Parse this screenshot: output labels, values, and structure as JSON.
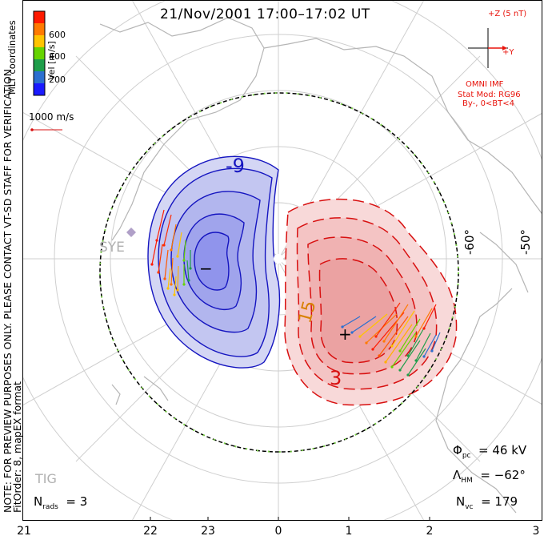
{
  "title": "21/Nov/2001 17:00–17:02 UT",
  "coords_label": "MLT coordinates",
  "colorbar": {
    "label": "Vel [m/s]",
    "ticks": [
      "600",
      "400",
      "200"
    ],
    "colors": [
      "#ff1a00",
      "#ff7a00",
      "#ffc400",
      "#66d400",
      "#1e9e4a",
      "#2b6fd0",
      "#1a1aff"
    ]
  },
  "scale_vector": "1000 m/s",
  "notice": "NOTE: FOR PREVIEW PURPOSES ONLY. PLEASE CONTACT VT-SD STAFF FOR VERIFICATION.",
  "fit_order": "FitOrder: 8, mapEX format",
  "imf": {
    "z_label": "+Z (5 nT)",
    "y_label": "+Y",
    "source": "OMNI IMF",
    "model": "Stat Mod: RG96",
    "cond": "By-, 0<BT<4"
  },
  "contour_labels": {
    "neg": "-9",
    "pos1": "15",
    "pos2": "3",
    "min_mark": "−",
    "max_mark": "+"
  },
  "lat_labels": [
    "-60°",
    "-50°"
  ],
  "stations": [
    "SYE",
    "TIG"
  ],
  "stats": {
    "phi_sym": "Φ",
    "phi_sub": "pc",
    "phi_val": "= 46 kV",
    "lam_sym": "Λ",
    "lam_sub": "HM",
    "lam_val": "= −62°",
    "nvc_sym": "N",
    "nvc_sub": "vc",
    "nvc_val": "= 179",
    "nrads_sym": "N",
    "nrads_sub": "rads",
    "nrads_val": "= 3"
  },
  "mlt_labels": [
    "21",
    "22",
    "23",
    "0",
    "1",
    "2",
    "3"
  ],
  "colors": {
    "neg_fill": "#c9ccf2",
    "pos_fill": "#f7cccc",
    "neg_line": "#1515c0",
    "pos_line": "#d81010",
    "imf": "#e8140c"
  }
}
